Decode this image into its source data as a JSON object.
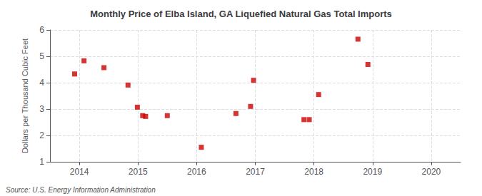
{
  "chart_data": {
    "type": "scatter",
    "title": "Monthly Price of Elba Island, GA Liquefied Natural Gas Total Imports",
    "y_label": "Dollars per Thousand Cubic Feet",
    "annotations": [
      "Source: U.S. Energy Information Administration"
    ],
    "x": [
      2013.92,
      2014.08,
      2014.42,
      2014.83,
      2014.99,
      2015.08,
      2015.13,
      2015.5,
      2016.08,
      2016.67,
      2016.92,
      2016.97,
      2017.83,
      2017.92,
      2018.08,
      2018.75,
      2018.92
    ],
    "values": [
      4.33,
      4.83,
      4.57,
      3.91,
      3.07,
      2.75,
      2.72,
      2.75,
      1.55,
      2.83,
      3.1,
      4.09,
      2.6,
      2.6,
      3.55,
      5.65,
      4.69
    ],
    "color": "#cc0000",
    "marker": "square",
    "xlim": [
      2013.5,
      2020.5
    ],
    "xticks": [
      2014,
      2015,
      2016,
      2017,
      2018,
      2019,
      2020
    ],
    "ylim": [
      1,
      6
    ],
    "yticks": [
      1,
      2,
      3,
      4,
      5,
      6
    ],
    "grid": true
  }
}
